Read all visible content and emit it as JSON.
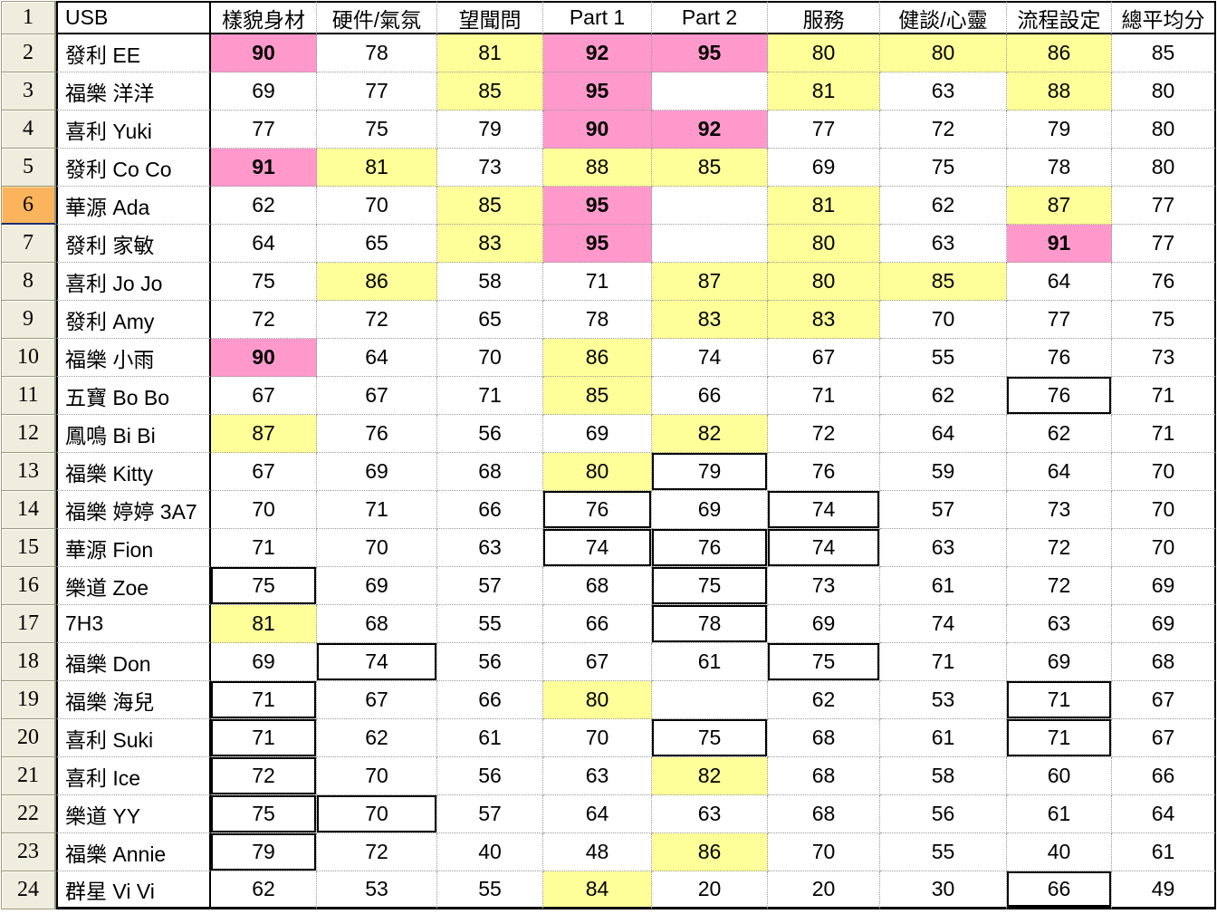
{
  "sheet": {
    "corner_row_number": "1",
    "selected_row_number": 6,
    "name_column_header": "USB",
    "score_columns": [
      "樣貌身材",
      "硬件/氣氛",
      "望聞問",
      "Part 1",
      "Part 2",
      "服務",
      "健談/心靈",
      "流程設定",
      "總平均分"
    ],
    "cell_style_legend": {
      "p": "pink-bold-highlight",
      "y": "yellow-highlight",
      "b": "black-outline-box",
      "": "plain"
    },
    "rows": [
      {
        "num": 2,
        "name": "發利 EE",
        "scores": [
          [
            90,
            "p"
          ],
          [
            78,
            ""
          ],
          [
            81,
            "y"
          ],
          [
            92,
            "p"
          ],
          [
            95,
            "p"
          ],
          [
            80,
            "y"
          ],
          [
            80,
            "y"
          ],
          [
            86,
            "y"
          ],
          [
            85,
            ""
          ]
        ]
      },
      {
        "num": 3,
        "name": "福樂 洋洋",
        "scores": [
          [
            69,
            ""
          ],
          [
            77,
            ""
          ],
          [
            85,
            "y"
          ],
          [
            95,
            "p"
          ],
          [
            "",
            ""
          ],
          [
            81,
            "y"
          ],
          [
            63,
            ""
          ],
          [
            88,
            "y"
          ],
          [
            80,
            ""
          ]
        ]
      },
      {
        "num": 4,
        "name": "喜利 Yuki",
        "scores": [
          [
            77,
            ""
          ],
          [
            75,
            ""
          ],
          [
            79,
            ""
          ],
          [
            90,
            "p"
          ],
          [
            92,
            "p"
          ],
          [
            77,
            ""
          ],
          [
            72,
            ""
          ],
          [
            79,
            ""
          ],
          [
            80,
            ""
          ]
        ]
      },
      {
        "num": 5,
        "name": "發利 Co Co",
        "scores": [
          [
            91,
            "p"
          ],
          [
            81,
            "y"
          ],
          [
            73,
            ""
          ],
          [
            88,
            "y"
          ],
          [
            85,
            "y"
          ],
          [
            69,
            ""
          ],
          [
            75,
            ""
          ],
          [
            78,
            ""
          ],
          [
            80,
            ""
          ]
        ]
      },
      {
        "num": 6,
        "name": "華源 Ada",
        "scores": [
          [
            62,
            ""
          ],
          [
            70,
            ""
          ],
          [
            85,
            "y"
          ],
          [
            95,
            "p"
          ],
          [
            "",
            ""
          ],
          [
            81,
            "y"
          ],
          [
            62,
            ""
          ],
          [
            87,
            "y"
          ],
          [
            77,
            ""
          ]
        ]
      },
      {
        "num": 7,
        "name": "發利 家敏",
        "scores": [
          [
            64,
            ""
          ],
          [
            65,
            ""
          ],
          [
            83,
            "y"
          ],
          [
            95,
            "p"
          ],
          [
            "",
            ""
          ],
          [
            80,
            "y"
          ],
          [
            63,
            ""
          ],
          [
            91,
            "p"
          ],
          [
            77,
            ""
          ]
        ]
      },
      {
        "num": 8,
        "name": "喜利 Jo Jo",
        "scores": [
          [
            75,
            ""
          ],
          [
            86,
            "y"
          ],
          [
            58,
            ""
          ],
          [
            71,
            ""
          ],
          [
            87,
            "y"
          ],
          [
            80,
            "y"
          ],
          [
            85,
            "y"
          ],
          [
            64,
            ""
          ],
          [
            76,
            ""
          ]
        ]
      },
      {
        "num": 9,
        "name": "發利 Amy",
        "scores": [
          [
            72,
            ""
          ],
          [
            72,
            ""
          ],
          [
            65,
            ""
          ],
          [
            78,
            ""
          ],
          [
            83,
            "y"
          ],
          [
            83,
            "y"
          ],
          [
            70,
            ""
          ],
          [
            77,
            ""
          ],
          [
            75,
            ""
          ]
        ]
      },
      {
        "num": 10,
        "name": "福樂 小雨",
        "scores": [
          [
            90,
            "p"
          ],
          [
            64,
            ""
          ],
          [
            70,
            ""
          ],
          [
            86,
            "y"
          ],
          [
            74,
            ""
          ],
          [
            67,
            ""
          ],
          [
            55,
            ""
          ],
          [
            76,
            ""
          ],
          [
            73,
            ""
          ]
        ]
      },
      {
        "num": 11,
        "name": "五寶 Bo Bo",
        "scores": [
          [
            67,
            ""
          ],
          [
            67,
            ""
          ],
          [
            71,
            ""
          ],
          [
            85,
            "y"
          ],
          [
            66,
            ""
          ],
          [
            71,
            ""
          ],
          [
            62,
            ""
          ],
          [
            76,
            "b"
          ],
          [
            71,
            ""
          ]
        ]
      },
      {
        "num": 12,
        "name": "鳳鳴 Bi Bi",
        "scores": [
          [
            87,
            "y"
          ],
          [
            76,
            ""
          ],
          [
            56,
            ""
          ],
          [
            69,
            ""
          ],
          [
            82,
            "y"
          ],
          [
            72,
            ""
          ],
          [
            64,
            ""
          ],
          [
            62,
            ""
          ],
          [
            71,
            ""
          ]
        ]
      },
      {
        "num": 13,
        "name": "福樂 Kitty",
        "scores": [
          [
            67,
            ""
          ],
          [
            69,
            ""
          ],
          [
            68,
            ""
          ],
          [
            80,
            "y"
          ],
          [
            79,
            "b"
          ],
          [
            76,
            ""
          ],
          [
            59,
            ""
          ],
          [
            64,
            ""
          ],
          [
            70,
            ""
          ]
        ]
      },
      {
        "num": 14,
        "name": "福樂 婷婷 3A7",
        "scores": [
          [
            70,
            ""
          ],
          [
            71,
            ""
          ],
          [
            66,
            ""
          ],
          [
            76,
            "b"
          ],
          [
            69,
            ""
          ],
          [
            74,
            "b"
          ],
          [
            57,
            ""
          ],
          [
            73,
            ""
          ],
          [
            70,
            ""
          ]
        ]
      },
      {
        "num": 15,
        "name": "華源 Fion",
        "scores": [
          [
            71,
            ""
          ],
          [
            70,
            ""
          ],
          [
            63,
            ""
          ],
          [
            74,
            "b"
          ],
          [
            76,
            "b"
          ],
          [
            74,
            "b"
          ],
          [
            63,
            ""
          ],
          [
            72,
            ""
          ],
          [
            70,
            ""
          ]
        ]
      },
      {
        "num": 16,
        "name": "樂道 Zoe",
        "scores": [
          [
            75,
            "b"
          ],
          [
            69,
            ""
          ],
          [
            57,
            ""
          ],
          [
            68,
            ""
          ],
          [
            75,
            "b"
          ],
          [
            73,
            ""
          ],
          [
            61,
            ""
          ],
          [
            72,
            ""
          ],
          [
            69,
            ""
          ]
        ]
      },
      {
        "num": 17,
        "name": "7H3",
        "scores": [
          [
            81,
            "y"
          ],
          [
            68,
            ""
          ],
          [
            55,
            ""
          ],
          [
            66,
            ""
          ],
          [
            78,
            "b"
          ],
          [
            69,
            ""
          ],
          [
            74,
            ""
          ],
          [
            63,
            ""
          ],
          [
            69,
            ""
          ]
        ]
      },
      {
        "num": 18,
        "name": "福樂 Don",
        "scores": [
          [
            69,
            ""
          ],
          [
            74,
            "b"
          ],
          [
            56,
            ""
          ],
          [
            67,
            ""
          ],
          [
            61,
            ""
          ],
          [
            75,
            "b"
          ],
          [
            71,
            ""
          ],
          [
            69,
            ""
          ],
          [
            68,
            ""
          ]
        ]
      },
      {
        "num": 19,
        "name": "福樂 海兒",
        "scores": [
          [
            71,
            "b"
          ],
          [
            67,
            ""
          ],
          [
            66,
            ""
          ],
          [
            80,
            "y"
          ],
          [
            "",
            ""
          ],
          [
            62,
            ""
          ],
          [
            53,
            ""
          ],
          [
            71,
            "b"
          ],
          [
            67,
            ""
          ]
        ]
      },
      {
        "num": 20,
        "name": "喜利 Suki",
        "scores": [
          [
            71,
            "b"
          ],
          [
            62,
            ""
          ],
          [
            61,
            ""
          ],
          [
            70,
            ""
          ],
          [
            75,
            "b"
          ],
          [
            68,
            ""
          ],
          [
            61,
            ""
          ],
          [
            71,
            "b"
          ],
          [
            67,
            ""
          ]
        ]
      },
      {
        "num": 21,
        "name": "喜利 Ice",
        "scores": [
          [
            72,
            "b"
          ],
          [
            70,
            ""
          ],
          [
            56,
            ""
          ],
          [
            63,
            ""
          ],
          [
            82,
            "y"
          ],
          [
            68,
            ""
          ],
          [
            58,
            ""
          ],
          [
            60,
            ""
          ],
          [
            66,
            ""
          ]
        ]
      },
      {
        "num": 22,
        "name": "樂道 YY",
        "scores": [
          [
            75,
            "b"
          ],
          [
            70,
            "b"
          ],
          [
            57,
            ""
          ],
          [
            64,
            ""
          ],
          [
            63,
            ""
          ],
          [
            68,
            ""
          ],
          [
            56,
            ""
          ],
          [
            61,
            ""
          ],
          [
            64,
            ""
          ]
        ]
      },
      {
        "num": 23,
        "name": "福樂 Annie",
        "scores": [
          [
            79,
            "b"
          ],
          [
            72,
            ""
          ],
          [
            40,
            ""
          ],
          [
            48,
            ""
          ],
          [
            86,
            "y"
          ],
          [
            70,
            ""
          ],
          [
            55,
            ""
          ],
          [
            40,
            ""
          ],
          [
            61,
            ""
          ]
        ]
      },
      {
        "num": 24,
        "name": "群星 Vi Vi",
        "scores": [
          [
            62,
            ""
          ],
          [
            53,
            ""
          ],
          [
            55,
            ""
          ],
          [
            84,
            "y"
          ],
          [
            20,
            ""
          ],
          [
            20,
            ""
          ],
          [
            30,
            ""
          ],
          [
            66,
            "b"
          ],
          [
            49,
            ""
          ]
        ]
      }
    ]
  },
  "colors": {
    "highlight_pink": "#FF99CC",
    "highlight_yellow": "#FFFF99",
    "selected_row_header_orange": "#FBB45C",
    "row_header_beige": "#EFEDDD",
    "grid_line_gray": "#999999",
    "table_border_black": "#000000",
    "selection_underline_navy": "#1C2E6E"
  }
}
